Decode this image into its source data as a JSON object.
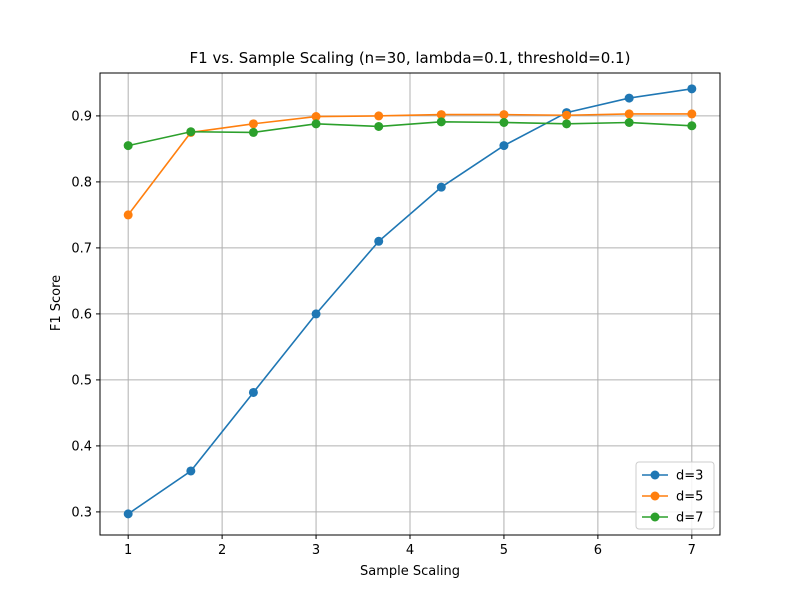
{
  "chart_data": {
    "type": "line",
    "title": "F1 vs. Sample Scaling (n=30, lambda=0.1, threshold=0.1)",
    "xlabel": "Sample Scaling",
    "ylabel": "F1 Score",
    "xlim": [
      0.7,
      7.3
    ],
    "ylim": [
      0.265,
      0.965
    ],
    "xticks": [
      1,
      2,
      3,
      4,
      5,
      6,
      7
    ],
    "yticks": [
      0.3,
      0.4,
      0.5,
      0.6,
      0.7,
      0.8,
      0.9
    ],
    "xtick_labels": [
      "1",
      "2",
      "3",
      "4",
      "5",
      "6",
      "7"
    ],
    "ytick_labels": [
      "0.3",
      "0.4",
      "0.5",
      "0.6",
      "0.7",
      "0.8",
      "0.9"
    ],
    "grid": true,
    "legend_position": "bottom-right",
    "x": [
      1.0,
      1.667,
      2.333,
      3.0,
      3.667,
      4.333,
      5.0,
      5.667,
      6.333,
      7.0
    ],
    "series": [
      {
        "name": "d=3",
        "color": "#1f77b4",
        "values": [
          0.297,
          0.362,
          0.481,
          0.6,
          0.71,
          0.792,
          0.855,
          0.905,
          0.927,
          0.941
        ]
      },
      {
        "name": "d=5",
        "color": "#ff7f0e",
        "values": [
          0.75,
          0.875,
          0.888,
          0.899,
          0.9,
          0.902,
          0.902,
          0.901,
          0.903,
          0.903
        ]
      },
      {
        "name": "d=7",
        "color": "#2ca02c",
        "values": [
          0.855,
          0.876,
          0.875,
          0.888,
          0.884,
          0.891,
          0.89,
          0.888,
          0.89,
          0.885
        ]
      }
    ]
  }
}
